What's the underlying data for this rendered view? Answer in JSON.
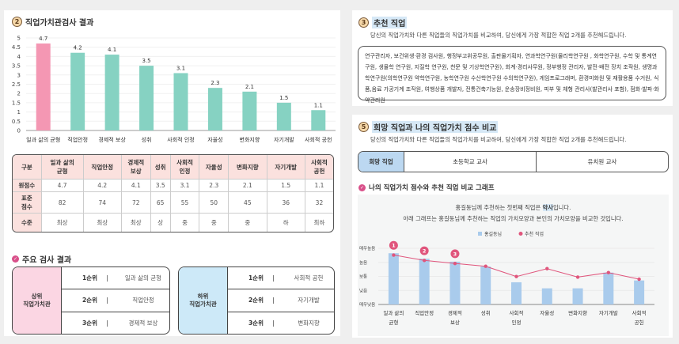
{
  "values_section": {
    "number": "2",
    "title": "직업가치관검사 결과"
  },
  "chart_data": [
    {
      "type": "bar",
      "title": "직업가치관검사 결과",
      "categories": [
        "일과 삶의 균형",
        "직업안정",
        "경제적 보상",
        "성취",
        "사회적 인정",
        "자율성",
        "변화지향",
        "자기개발",
        "사회적 공헌"
      ],
      "values": [
        4.7,
        4.2,
        4.1,
        3.5,
        3.1,
        2.3,
        2.1,
        1.5,
        1.1
      ],
      "value_labels": [
        "4.7",
        "4.2",
        "4.1",
        "3.5",
        "3.1",
        "2.3",
        "2.1",
        "1.5",
        "1.1"
      ],
      "ylim": [
        0,
        5
      ],
      "yticks": [
        "0",
        "0.5",
        "1",
        "1.5",
        "2",
        "2.5",
        "3",
        "3.5",
        "4",
        "4.5",
        "5"
      ],
      "highlight_color": "#f497b3",
      "bar_color": "#86d2c2"
    },
    {
      "type": "bar+line",
      "title": "나의 직업가치 점수와 추천 직업 비교 그래프",
      "categories": [
        "일과 삶의 균형",
        "직업안정",
        "경제적 보상",
        "성취",
        "사회적 인정",
        "자율성",
        "변화지향",
        "자기개발",
        "사회적 공헌"
      ],
      "category_lines": [
        [
          "일과 삶의",
          "균형"
        ],
        [
          "직업안정",
          ""
        ],
        [
          "경제적",
          "보상"
        ],
        [
          "성취",
          ""
        ],
        [
          "사회적",
          "인정"
        ],
        [
          "자율성",
          ""
        ],
        [
          "변화지향",
          ""
        ],
        [
          "자기개발",
          ""
        ],
        [
          "사회적",
          "공헌"
        ]
      ],
      "series": [
        {
          "name": "홍길동님",
          "type": "bar",
          "color": "#a9cbec",
          "values": [
            3.65,
            3.26,
            3.05,
            2.7,
            1.58,
            1.15,
            1.15,
            2.27,
            1.71
          ]
        },
        {
          "name": "추천 직업",
          "type": "line",
          "color": "#e0557c",
          "values": [
            3.52,
            3.14,
            2.92,
            2.72,
            1.99,
            2.55,
            1.95,
            2.27,
            1.8
          ]
        }
      ],
      "ylim": [
        0,
        4
      ],
      "yticks": [
        "매우낮음",
        "낮음",
        "보통",
        "높음",
        "매우높음"
      ],
      "rank_markers": [
        "1",
        "2",
        "3"
      ]
    }
  ],
  "table": {
    "headers": [
      "구분",
      "일과 삶의\n균형",
      "직업안정",
      "경제적\n보상",
      "성취",
      "사회적\n인정",
      "자율성",
      "변화지향",
      "자기개발",
      "사회적\n공헌"
    ],
    "rows": [
      {
        "label": "원점수",
        "cells": [
          "4.7",
          "4.2",
          "4.1",
          "3.5",
          "3.1",
          "2.3",
          "2.1",
          "1.5",
          "1.1"
        ]
      },
      {
        "label": "표준\n점수",
        "cells": [
          "82",
          "74",
          "72",
          "65",
          "55",
          "50",
          "45",
          "36",
          "32"
        ]
      },
      {
        "label": "수준",
        "cells": [
          "최상",
          "최상",
          "최상",
          "상",
          "중",
          "중",
          "중",
          "하",
          "최하"
        ]
      }
    ]
  },
  "main_results": {
    "title": "주요 검사 결과",
    "upper": {
      "label": "상위\n직업가치관",
      "items": [
        {
          "rank": "1순위",
          "value": "일과 삶의 균형"
        },
        {
          "rank": "2순위",
          "value": "직업안정"
        },
        {
          "rank": "3순위",
          "value": "경제적 보상"
        }
      ]
    },
    "lower": {
      "label": "하위\n직업가치관",
      "items": [
        {
          "rank": "1순위",
          "value": "사회적 공헌"
        },
        {
          "rank": "2순위",
          "value": "자기개발"
        },
        {
          "rank": "3순위",
          "value": "변화지향"
        }
      ]
    },
    "separator": "|"
  },
  "recommend": {
    "number": "3",
    "title": "추천 직업",
    "desc": "당신의 직업가치와 다른 직업들의 직업가치를 비교하여, 당신에게 가장 적합한 직업 2개를 추천해드립니다.",
    "jobs": "연구관리자, 보건위생·환경 검사원, 행정부고위공무원, 출판물기획자, 연과학연구원(물리학연구원 , 화학연구원, 수학 및 통계연구원, 생물학 연구원, 지질학 연구원, 천문 및 기상학연구원), 회계·경리사무원, 정부행정 관리자, 발전·배전 장치 조작원, 생명과학연구원(의학연구원 약학연구원, 농학연구원 수산학연구원 수의학연구원), 게임프로그래머, 환경미화원 및 재활용품 수거원, 식품,음료 가공기계 조작원, 여행상품 개발자, 전통건축기능원, 운송장비정비원, 피부 및 체형 관리사(발관리사 포함), 점화·발파·화약관리원"
  },
  "compare": {
    "number": "5",
    "title": "희망 직업과 나의 직업가치 점수 비교",
    "desc": "당신의 직업가치와 다른 직업들의 직업가치를 비교하여, 당신에게 가장 적합한 직업 2개를 추천해드립니다.",
    "tab_label": "희망 직업",
    "jobs": [
      "초등학교 교사",
      "유치원 교사"
    ],
    "graph_title": "나의 직업가치 점수와 추천 직업 비교 그래프",
    "msg_pre": "홍길동님께 추천하는 첫번째 직업은 ",
    "msg_job": "약사",
    "msg_post": "입니다.",
    "msg2": "아래 그래프는 홍길동님께 추천하는 직업의 가치모양과 본인의 가치모양을 비교한 것입니다."
  }
}
